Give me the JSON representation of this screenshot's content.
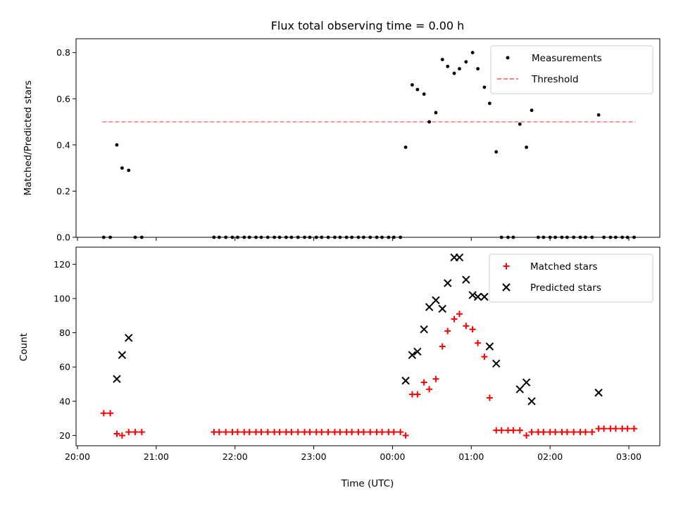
{
  "chart_data": [
    {
      "type": "scatter",
      "title": "Flux total observing time = 0.00 h",
      "xlabel": "",
      "ylabel": "Matched/Predicted stars",
      "ylim": [
        0,
        0.86
      ],
      "yticks": [
        "0.0",
        "0.2",
        "0.4",
        "0.6",
        "0.8"
      ],
      "xlim": [
        "20:00",
        "03:20"
      ],
      "legend": "upper right",
      "series": [
        {
          "name": "Measurements",
          "color": "#000000",
          "marker": "dot",
          "points": [
            [
              "20:20",
              0.0
            ],
            [
              "20:25",
              0.0
            ],
            [
              "20:30",
              0.4
            ],
            [
              "20:34",
              0.3
            ],
            [
              "20:39",
              0.29
            ],
            [
              "20:44",
              0.0
            ],
            [
              "20:49",
              0.0
            ],
            [
              "21:44",
              0.0
            ],
            [
              "21:48",
              0.0
            ],
            [
              "21:53",
              0.0
            ],
            [
              "21:58",
              0.0
            ],
            [
              "22:02",
              0.0
            ],
            [
              "22:07",
              0.0
            ],
            [
              "22:11",
              0.0
            ],
            [
              "22:16",
              0.0
            ],
            [
              "22:20",
              0.0
            ],
            [
              "22:25",
              0.0
            ],
            [
              "22:30",
              0.0
            ],
            [
              "22:34",
              0.0
            ],
            [
              "22:39",
              0.0
            ],
            [
              "22:43",
              0.0
            ],
            [
              "22:48",
              0.0
            ],
            [
              "22:53",
              0.0
            ],
            [
              "22:57",
              0.0
            ],
            [
              "23:02",
              0.0
            ],
            [
              "23:06",
              0.0
            ],
            [
              "23:11",
              0.0
            ],
            [
              "23:16",
              0.0
            ],
            [
              "23:20",
              0.0
            ],
            [
              "23:25",
              0.0
            ],
            [
              "23:29",
              0.0
            ],
            [
              "23:34",
              0.0
            ],
            [
              "23:38",
              0.0
            ],
            [
              "23:43",
              0.0
            ],
            [
              "23:48",
              0.0
            ],
            [
              "23:52",
              0.0
            ],
            [
              "23:57",
              0.0
            ],
            [
              "00:01",
              0.0
            ],
            [
              "00:06",
              0.0
            ],
            [
              "00:10",
              0.39
            ],
            [
              "00:15",
              0.66
            ],
            [
              "00:19",
              0.64
            ],
            [
              "00:24",
              0.62
            ],
            [
              "00:28",
              0.5
            ],
            [
              "00:33",
              0.54
            ],
            [
              "00:38",
              0.77
            ],
            [
              "00:42",
              0.74
            ],
            [
              "00:47",
              0.71
            ],
            [
              "00:51",
              0.73
            ],
            [
              "00:56",
              0.76
            ],
            [
              "01:01",
              0.8
            ],
            [
              "01:05",
              0.73
            ],
            [
              "01:10",
              0.65
            ],
            [
              "01:14",
              0.58
            ],
            [
              "01:19",
              0.37
            ],
            [
              "01:23",
              0.0
            ],
            [
              "01:28",
              0.0
            ],
            [
              "01:32",
              0.0
            ],
            [
              "01:37",
              0.49
            ],
            [
              "01:42",
              0.39
            ],
            [
              "01:46",
              0.55
            ],
            [
              "01:51",
              0.0
            ],
            [
              "01:55",
              0.0
            ],
            [
              "02:00",
              0.0
            ],
            [
              "02:04",
              0.0
            ],
            [
              "02:09",
              0.0
            ],
            [
              "02:13",
              0.0
            ],
            [
              "02:18",
              0.0
            ],
            [
              "02:23",
              0.0
            ],
            [
              "02:27",
              0.0
            ],
            [
              "02:32",
              0.0
            ],
            [
              "02:37",
              0.53
            ],
            [
              "02:41",
              0.0
            ],
            [
              "02:46",
              0.0
            ],
            [
              "02:50",
              0.0
            ],
            [
              "02:55",
              0.0
            ],
            [
              "02:59",
              0.0
            ],
            [
              "03:04",
              0.0
            ]
          ]
        },
        {
          "name": "Threshold",
          "color": "#ff7f7f",
          "style": "dashed",
          "x": [
            "20:19",
            "03:05"
          ],
          "y": [
            0.5,
            0.5
          ]
        }
      ]
    },
    {
      "type": "scatter",
      "title": "",
      "xlabel": "Time (UTC)",
      "ylabel": "Count",
      "ylim": [
        14,
        130
      ],
      "yticks": [
        "20",
        "40",
        "60",
        "80",
        "100",
        "120"
      ],
      "xlim": [
        "20:00",
        "03:20"
      ],
      "xticks": [
        "20:00",
        "21:00",
        "22:00",
        "23:00",
        "00:00",
        "01:00",
        "02:00",
        "03:00"
      ],
      "legend": "upper right",
      "series": [
        {
          "name": "Matched stars",
          "color": "#ff0000",
          "marker": "plus",
          "points": [
            [
              "20:20",
              33
            ],
            [
              "20:25",
              33
            ],
            [
              "20:30",
              21
            ],
            [
              "20:34",
              20
            ],
            [
              "20:39",
              22
            ],
            [
              "20:44",
              22
            ],
            [
              "20:49",
              22
            ],
            [
              "21:44",
              22
            ],
            [
              "21:48",
              22
            ],
            [
              "21:53",
              22
            ],
            [
              "21:58",
              22
            ],
            [
              "22:02",
              22
            ],
            [
              "22:07",
              22
            ],
            [
              "22:11",
              22
            ],
            [
              "22:16",
              22
            ],
            [
              "22:20",
              22
            ],
            [
              "22:25",
              22
            ],
            [
              "22:30",
              22
            ],
            [
              "22:34",
              22
            ],
            [
              "22:39",
              22
            ],
            [
              "22:43",
              22
            ],
            [
              "22:48",
              22
            ],
            [
              "22:53",
              22
            ],
            [
              "22:57",
              22
            ],
            [
              "23:02",
              22
            ],
            [
              "23:06",
              22
            ],
            [
              "23:11",
              22
            ],
            [
              "23:16",
              22
            ],
            [
              "23:20",
              22
            ],
            [
              "23:25",
              22
            ],
            [
              "23:29",
              22
            ],
            [
              "23:34",
              22
            ],
            [
              "23:38",
              22
            ],
            [
              "23:43",
              22
            ],
            [
              "23:48",
              22
            ],
            [
              "23:52",
              22
            ],
            [
              "23:57",
              22
            ],
            [
              "00:01",
              22
            ],
            [
              "00:06",
              22
            ],
            [
              "00:10",
              20
            ],
            [
              "00:15",
              44
            ],
            [
              "00:19",
              44
            ],
            [
              "00:24",
              51
            ],
            [
              "00:28",
              47
            ],
            [
              "00:33",
              53
            ],
            [
              "00:38",
              72
            ],
            [
              "00:42",
              81
            ],
            [
              "00:47",
              88
            ],
            [
              "00:51",
              91
            ],
            [
              "00:56",
              84
            ],
            [
              "01:01",
              82
            ],
            [
              "01:05",
              74
            ],
            [
              "01:10",
              66
            ],
            [
              "01:14",
              42
            ],
            [
              "01:19",
              23
            ],
            [
              "01:23",
              23
            ],
            [
              "01:28",
              23
            ],
            [
              "01:32",
              23
            ],
            [
              "01:37",
              23
            ],
            [
              "01:42",
              20
            ],
            [
              "01:46",
              22
            ],
            [
              "01:51",
              22
            ],
            [
              "01:55",
              22
            ],
            [
              "02:00",
              22
            ],
            [
              "02:04",
              22
            ],
            [
              "02:09",
              22
            ],
            [
              "02:13",
              22
            ],
            [
              "02:18",
              22
            ],
            [
              "02:23",
              22
            ],
            [
              "02:27",
              22
            ],
            [
              "02:32",
              22
            ],
            [
              "02:37",
              24
            ],
            [
              "02:41",
              24
            ],
            [
              "02:46",
              24
            ],
            [
              "02:50",
              24
            ],
            [
              "02:55",
              24
            ],
            [
              "02:59",
              24
            ],
            [
              "03:04",
              24
            ]
          ]
        },
        {
          "name": "Predicted stars",
          "color": "#000000",
          "marker": "x",
          "points": [
            [
              "20:30",
              53
            ],
            [
              "20:34",
              67
            ],
            [
              "20:39",
              77
            ],
            [
              "00:10",
              52
            ],
            [
              "00:15",
              67
            ],
            [
              "00:19",
              69
            ],
            [
              "00:24",
              82
            ],
            [
              "00:28",
              95
            ],
            [
              "00:33",
              99
            ],
            [
              "00:38",
              94
            ],
            [
              "00:42",
              109
            ],
            [
              "00:47",
              124
            ],
            [
              "00:51",
              124
            ],
            [
              "00:56",
              111
            ],
            [
              "01:01",
              102
            ],
            [
              "01:05",
              101
            ],
            [
              "01:10",
              101
            ],
            [
              "01:14",
              72
            ],
            [
              "01:19",
              62
            ],
            [
              "01:37",
              47
            ],
            [
              "01:42",
              51
            ],
            [
              "01:46",
              40
            ],
            [
              "02:37",
              45
            ]
          ]
        }
      ]
    }
  ]
}
